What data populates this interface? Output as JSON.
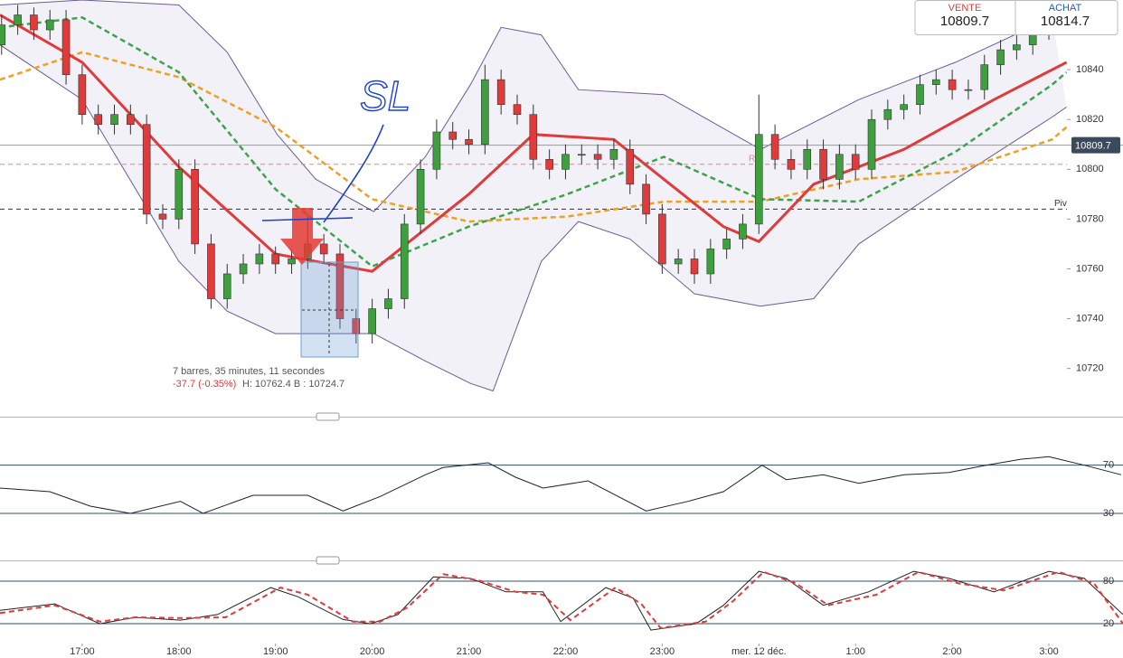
{
  "quote": {
    "sell_label": "VENTE",
    "sell": "10809.7",
    "buy_label": "ACHAT",
    "buy": "10814.7"
  },
  "measure": {
    "line1": "7 barres, 35 minutes, 11 secondes",
    "change": "-37.7 (-0.35%)",
    "range": "H: 10762.4 B : 10724.7"
  },
  "drawing": {
    "text": "SL"
  },
  "chart_data": [
    {
      "type": "candlestick",
      "xlim": [
        -51,
        646
      ],
      "ylim": [
        10701,
        10868
      ],
      "xticks": [
        {
          "value": 0,
          "label": "17:00"
        },
        {
          "value": 60,
          "label": "18:00"
        },
        {
          "value": 120,
          "label": "19:00"
        },
        {
          "value": 180,
          "label": "20:00"
        },
        {
          "value": 240,
          "label": "21:00"
        },
        {
          "value": 300,
          "label": "22:00"
        },
        {
          "value": 360,
          "label": "23:00"
        },
        {
          "value": 420,
          "label": "mer. 12 déc."
        },
        {
          "value": 480,
          "label": "1:00"
        },
        {
          "value": 540,
          "label": "2:00"
        },
        {
          "value": 600,
          "label": "3:00"
        }
      ],
      "yticks": [
        10720,
        10740,
        10760,
        10780,
        10800,
        10820,
        10840
      ],
      "up_color": "#3f9f3f",
      "down_color": "#e03a3a",
      "candles": {
        "x": [
          -50,
          -40,
          -30,
          -20,
          -10,
          0,
          10,
          20,
          30,
          40,
          50,
          60,
          70,
          80,
          90,
          100,
          110,
          120,
          130,
          140,
          150,
          160,
          170,
          180,
          190,
          200,
          210,
          220,
          230,
          240,
          250,
          260,
          270,
          280,
          290,
          300,
          310,
          320,
          330,
          340,
          350,
          360,
          370,
          380,
          390,
          400,
          410,
          420,
          430,
          440,
          450,
          460,
          470,
          480,
          490,
          500,
          510,
          520,
          530,
          540,
          550,
          560,
          570,
          580,
          590,
          600
        ],
        "open": [
          10850,
          10858,
          10862,
          10856,
          10860,
          10838,
          10822,
          10818,
          10822,
          10818,
          10782,
          10780,
          10800,
          10770,
          10748,
          10758,
          10762,
          10766,
          10762,
          10764,
          10770,
          10766,
          10740,
          10734,
          10744,
          10748,
          10778,
          10800,
          10815,
          10812,
          10810,
          10836,
          10826,
          10822,
          10804,
          10800,
          10806,
          10806,
          10804,
          10808,
          10794,
          10782,
          10762,
          10764,
          10758,
          10768,
          10772,
          10778,
          10814,
          10804,
          10800,
          10808,
          10796,
          10806,
          10800,
          10820,
          10824,
          10826,
          10834,
          10836,
          10832,
          10832,
          10842,
          10848,
          10850,
          10856
        ],
        "high": [
          10862,
          10866,
          10865,
          10864,
          10864,
          10842,
          10826,
          10826,
          10826,
          10822,
          10786,
          10804,
          10804,
          10774,
          10762,
          10766,
          10770,
          10769,
          10768,
          10782,
          10774,
          10770,
          10744,
          10748,
          10752,
          10782,
          10804,
          10820,
          10819,
          10816,
          10842,
          10840,
          10830,
          10826,
          10808,
          10810,
          10810,
          10810,
          10812,
          10812,
          10798,
          10786,
          10768,
          10768,
          10772,
          10776,
          10782,
          10830,
          10818,
          10808,
          10812,
          10812,
          10810,
          10810,
          10824,
          10828,
          10830,
          10838,
          10840,
          10840,
          10836,
          10846,
          10852,
          10854,
          10860,
          10866
        ],
        "low": [
          10846,
          10854,
          10852,
          10852,
          10834,
          10818,
          10814,
          10814,
          10814,
          10778,
          10776,
          10776,
          10766,
          10744,
          10744,
          10754,
          10758,
          10758,
          10758,
          10760,
          10762,
          10736,
          10730,
          10730,
          10740,
          10744,
          10774,
          10796,
          10808,
          10806,
          10806,
          10822,
          10818,
          10800,
          10796,
          10796,
          10802,
          10800,
          10800,
          10790,
          10778,
          10758,
          10758,
          10754,
          10754,
          10764,
          10768,
          10774,
          10800,
          10796,
          10796,
          10792,
          10792,
          10796,
          10796,
          10816,
          10820,
          10822,
          10830,
          10828,
          10828,
          10828,
          10838,
          10844,
          10846,
          10852
        ],
        "close": [
          10858,
          10862,
          10856,
          10860,
          10838,
          10822,
          10818,
          10822,
          10818,
          10782,
          10780,
          10800,
          10770,
          10748,
          10758,
          10762,
          10766,
          10762,
          10764,
          10770,
          10766,
          10740,
          10734,
          10744,
          10748,
          10778,
          10800,
          10815,
          10812,
          10810,
          10836,
          10826,
          10822,
          10804,
          10800,
          10806,
          10806,
          10804,
          10808,
          10794,
          10782,
          10762,
          10764,
          10758,
          10768,
          10772,
          10778,
          10814,
          10804,
          10800,
          10808,
          10796,
          10806,
          10800,
          10820,
          10824,
          10826,
          10834,
          10836,
          10832,
          10832,
          10842,
          10848,
          10850,
          10856,
          10862
        ]
      },
      "bands": {
        "color": "#6b5b9a",
        "fill": "#f1f1f7",
        "upper": {
          "x": [
            -51,
            0,
            60,
            90,
            121,
            145,
            181,
            213,
            241,
            260,
            285,
            308,
            361,
            421,
            482,
            542,
            602
          ],
          "values": [
            10866,
            10868,
            10866,
            10847,
            10814,
            10796,
            10783,
            10805,
            10834,
            10857,
            10854,
            10832,
            10830,
            10808,
            10828,
            10843,
            10861
          ]
        },
        "lower": {
          "x": [
            -51,
            0,
            60,
            90,
            120,
            150,
            181,
            213,
            241,
            255,
            285,
            308,
            340,
            380,
            421,
            454,
            482,
            542,
            602,
            611
          ],
          "values": [
            10850,
            10828,
            10763,
            10743,
            10734,
            10734,
            10734,
            10723,
            10714,
            10711,
            10763,
            10779,
            10772,
            10750,
            10745,
            10748,
            10770,
            10796,
            10821,
            10825
          ]
        }
      },
      "overlays": [
        {
          "color": "#f0a020",
          "dashed": true,
          "width": 2.5,
          "x": [
            -51,
            0,
            60,
            120,
            180,
            240,
            301,
            361,
            421,
            482,
            542,
            602,
            611
          ],
          "values": [
            10836,
            10847,
            10837,
            10817,
            10788,
            10779,
            10781,
            10787,
            10787,
            10796,
            10799,
            10812,
            10817
          ]
        },
        {
          "color": "#3fa34d",
          "dashed": true,
          "width": 2.5,
          "x": [
            -51,
            0,
            60,
            120,
            180,
            240,
            301,
            361,
            421,
            482,
            542,
            602,
            611
          ],
          "values": [
            10857,
            10861,
            10839,
            10792,
            10761,
            10777,
            10790,
            10805,
            10788,
            10787,
            10807,
            10834,
            10839
          ]
        },
        {
          "color": "#e03a3a",
          "dashed": false,
          "width": 3,
          "x": [
            -51,
            0,
            60,
            120,
            145,
            180,
            240,
            280,
            330,
            361,
            398,
            420,
            454,
            510,
            566,
            611
          ],
          "values": [
            10862,
            10843,
            10801,
            10766,
            10763,
            10759,
            10790,
            10814,
            10812,
            10796,
            10777,
            10771,
            10794,
            10808,
            10828,
            10843
          ]
        }
      ],
      "levels": [
        {
          "value": 10802,
          "color": "#f08080",
          "label": "R1"
        },
        {
          "value": 10784,
          "color": "#333333",
          "label": "Piv"
        }
      ],
      "last_price": 10809.7
    },
    {
      "type": "line",
      "xlim": [
        -51,
        646
      ],
      "ylim": [
        -3,
        105
      ],
      "yticks": [
        30,
        70
      ],
      "tick_color": "#2c4f6e",
      "series": [
        {
          "color": "#222222",
          "x": [
            -51,
            -20,
            5,
            30,
            61,
            75,
            106,
            140,
            162,
            185,
            213,
            224,
            252,
            269,
            286,
            314,
            350,
            376,
            398,
            422,
            437,
            460,
            482,
            510,
            538,
            561,
            583,
            600,
            622,
            645
          ],
          "values": [
            51,
            48,
            36,
            30,
            40,
            30,
            45,
            45,
            32,
            44,
            62,
            68,
            72,
            60,
            51,
            57,
            32,
            40,
            48,
            70,
            58,
            62,
            55,
            62,
            64,
            70,
            75,
            77,
            70,
            62
          ]
        }
      ]
    },
    {
      "type": "line",
      "xlim": [
        -51,
        646
      ],
      "ylim": [
        -8,
        103
      ],
      "yticks": [
        20,
        80
      ],
      "tick_color": "#2c4f6e",
      "series": [
        {
          "color": "#222222",
          "dashed": false,
          "x": [
            -51,
            -17,
            11,
            33,
            61,
            84,
            117,
            134,
            162,
            179,
            196,
            218,
            241,
            263,
            286,
            297,
            325,
            342,
            353,
            381,
            398,
            420,
            437,
            460,
            488,
            516,
            538,
            566,
            600,
            622,
            646
          ],
          "values": [
            39,
            48,
            20,
            29,
            25,
            33,
            71,
            58,
            26,
            20,
            33,
            86,
            84,
            65,
            65,
            23,
            71,
            56,
            11,
            20,
            46,
            94,
            84,
            46,
            65,
            94,
            84,
            65,
            94,
            84,
            33
          ]
        },
        {
          "color": "#e03a3a",
          "dashed": true,
          "x": [
            -51,
            -17,
            11,
            33,
            61,
            89,
            123,
            140,
            168,
            185,
            202,
            224,
            246,
            269,
            286,
            303,
            331,
            347,
            359,
            387,
            404,
            423,
            443,
            463,
            493,
            519,
            544,
            572,
            606,
            628,
            646
          ],
          "values": [
            35,
            46,
            23,
            29,
            28,
            29,
            71,
            61,
            23,
            23,
            43,
            90,
            81,
            65,
            61,
            25,
            71,
            48,
            14,
            23,
            52,
            93,
            77,
            46,
            61,
            93,
            77,
            67,
            93,
            77,
            20
          ]
        }
      ]
    }
  ]
}
